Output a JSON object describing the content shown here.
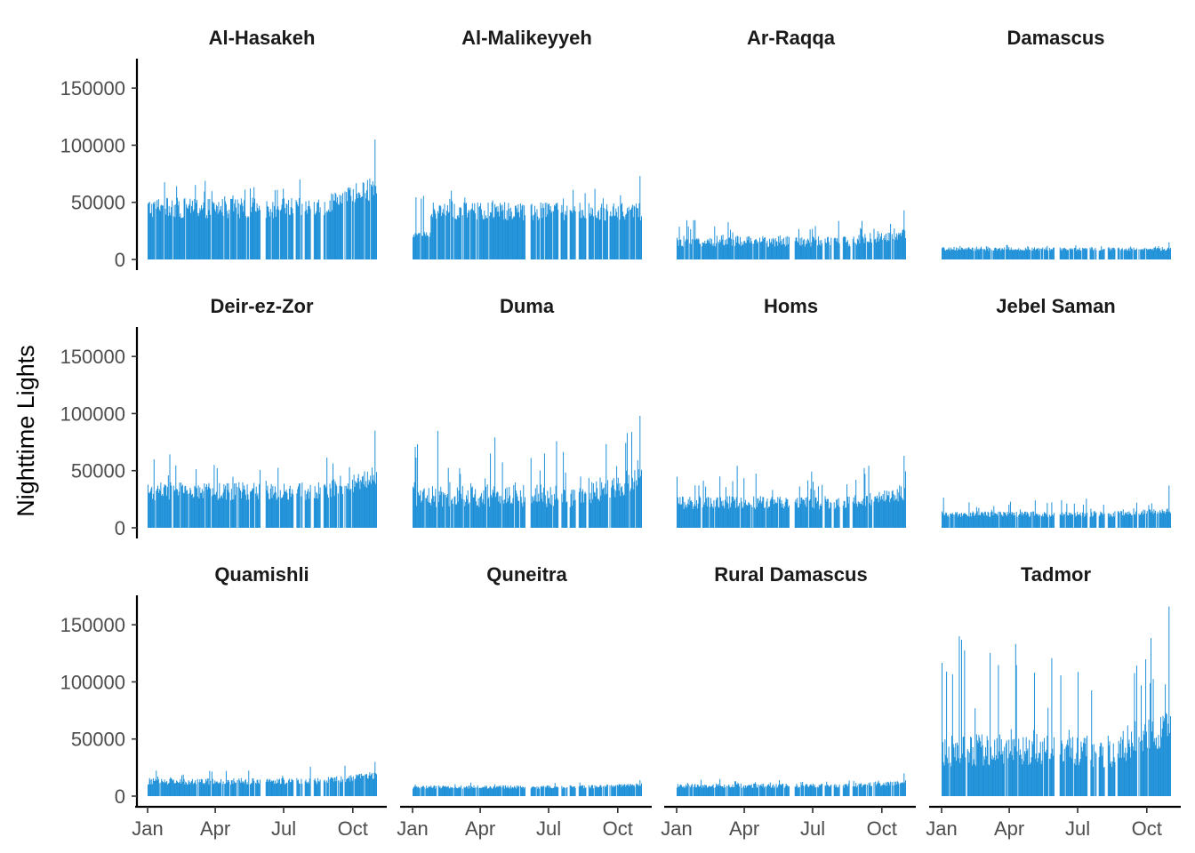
{
  "chart_data": {
    "type": "bar",
    "layout": "facet_grid_3x4",
    "ylabel": "Nighttime Lights",
    "xlabel": "",
    "ylim": [
      0,
      175000
    ],
    "yticks": [
      0,
      50000,
      100000,
      150000
    ],
    "ytick_labels": [
      "0",
      "50000",
      "100000",
      "150000"
    ],
    "xticks": [
      "Jan",
      "Apr",
      "Jul",
      "Oct"
    ],
    "xtick_days": [
      1,
      91,
      182,
      274
    ],
    "x_range_days": [
      1,
      305
    ],
    "bar_color": "#1e90d8",
    "grid": false,
    "panels": [
      {
        "name": "Al-Hasakeh",
        "base": 45000,
        "noise": 9000,
        "spike_max": 105000,
        "typical_peak": 70000,
        "end_trend": 20000
      },
      {
        "name": "Al-Malikeyyeh",
        "base": 42000,
        "noise": 8000,
        "spike_max": 73000,
        "typical_peak": 62000,
        "start_low": 22000,
        "end_trend": 0
      },
      {
        "name": "Ar-Raqqa",
        "base": 16000,
        "noise": 5000,
        "spike_max": 43000,
        "typical_peak": 35000,
        "end_trend": 6000
      },
      {
        "name": "Damascus",
        "base": 9000,
        "noise": 1500,
        "spike_max": 15000,
        "typical_peak": 13000,
        "end_trend": 0
      },
      {
        "name": "Deir-ez-Zor",
        "base": 32000,
        "noise": 8000,
        "spike_max": 85000,
        "typical_peak": 65000,
        "end_trend": 12000
      },
      {
        "name": "Duma",
        "base": 28000,
        "noise": 10000,
        "spike_max": 98000,
        "typical_peak": 85000,
        "end_trend": 15000
      },
      {
        "name": "Homs",
        "base": 22000,
        "noise": 6000,
        "spike_max": 63000,
        "typical_peak": 55000,
        "end_trend": 8000
      },
      {
        "name": "Jebel Saman",
        "base": 12000,
        "noise": 2500,
        "spike_max": 37000,
        "typical_peak": 27000,
        "end_trend": 3000
      },
      {
        "name": "Quamishli",
        "base": 13000,
        "noise": 3000,
        "spike_max": 30000,
        "typical_peak": 27000,
        "end_trend": 5000
      },
      {
        "name": "Quneitra",
        "base": 8000,
        "noise": 1500,
        "spike_max": 14000,
        "typical_peak": 12000,
        "end_trend": 2000
      },
      {
        "name": "Rural Damascus",
        "base": 9000,
        "noise": 2000,
        "spike_max": 20000,
        "typical_peak": 16000,
        "end_trend": 3000
      },
      {
        "name": "Tadmor",
        "base": 40000,
        "noise": 15000,
        "spike_max": 166000,
        "typical_peak": 140000,
        "end_trend": 20000
      }
    ],
    "missing_day_ranges": [
      [
        151,
        157
      ],
      [
        195,
        197
      ],
      [
        207,
        209
      ],
      [
        218,
        221
      ],
      [
        232,
        234
      ],
      [
        261,
        262
      ]
    ]
  }
}
